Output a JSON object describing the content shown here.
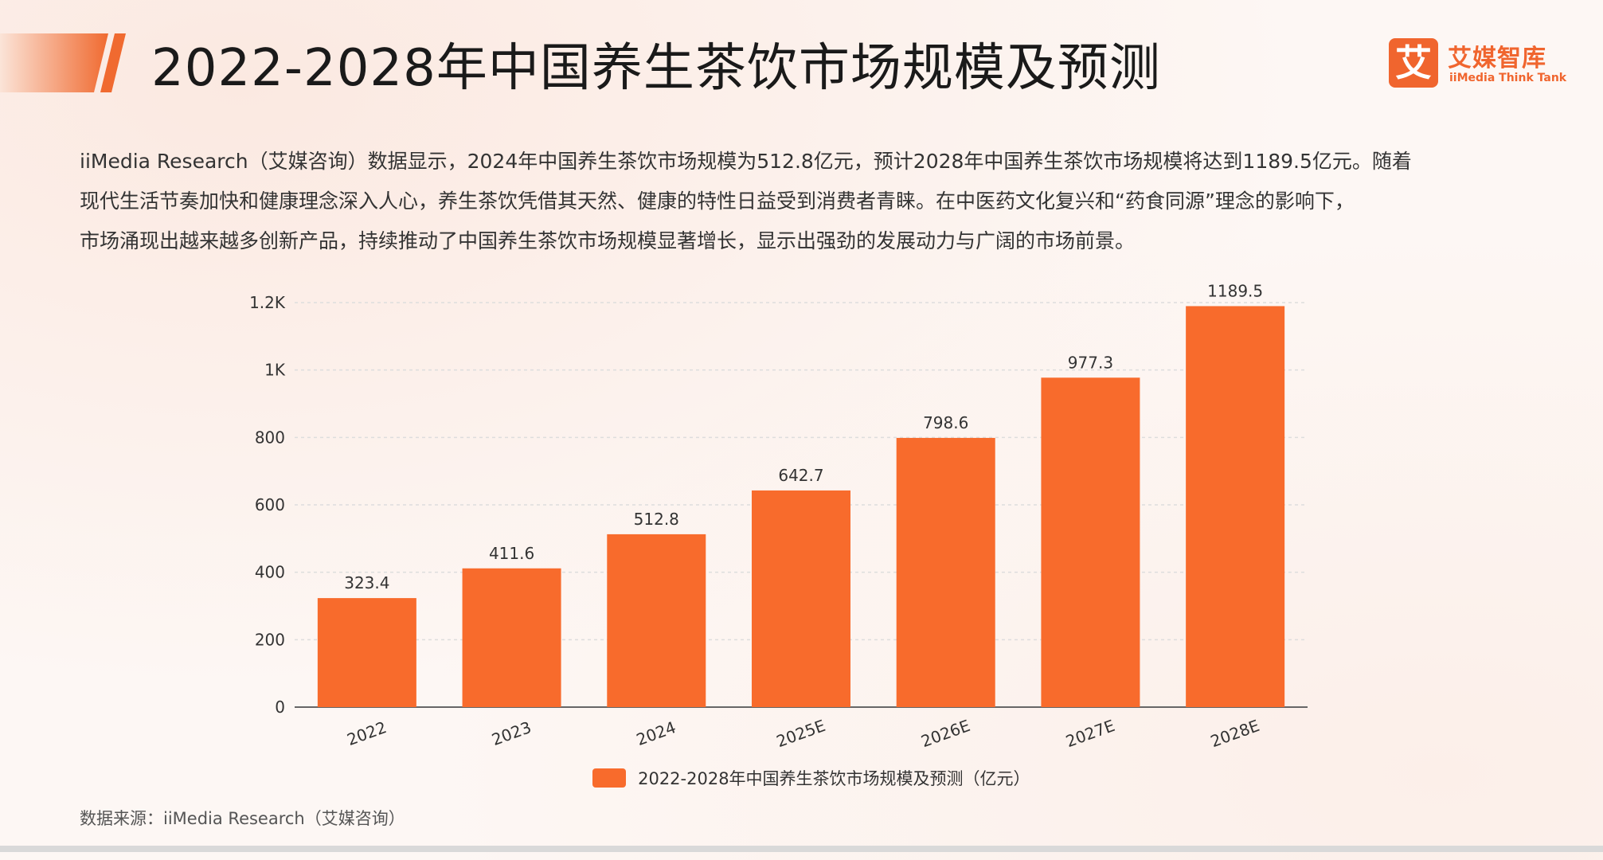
{
  "header": {
    "title": "2022-2028年中国养生茶饮市场规模及预测"
  },
  "brand": {
    "icon_char": "艾",
    "name": "艾媒智库",
    "subtitle": "iiMedia Think Tank",
    "color": "#f0652e"
  },
  "description": {
    "lines": [
      "iiMedia Research（艾媒咨询）数据显示，2024年中国养生茶饮市场规模为512.8亿元，预计2028年中国养生茶饮市场规模将达到1189.5亿元。随着",
      "现代生活节奏加快和健康理念深入人心，养生茶饮凭借其天然、健康的特性日益受到消费者青睐。在中医药文化复兴和“药食同源”理念的影响下，",
      "市场涌现出越来越多创新产品，持续推动了中国养生茶饮市场规模显著增长，显示出强劲的发展动力与广阔的市场前景。"
    ]
  },
  "chart_data": {
    "type": "bar",
    "categories": [
      "2022",
      "2023",
      "2024",
      "2025E",
      "2026E",
      "2027E",
      "2028E"
    ],
    "values": [
      323.4,
      411.6,
      512.8,
      642.7,
      798.6,
      977.3,
      1189.5
    ],
    "value_labels": [
      "323.4",
      "411.6",
      "512.8",
      "642.7",
      "798.6",
      "977.3",
      "1189.5"
    ],
    "series_name": "2022-2028年中国养生茶饮市场规模及预测（亿元）",
    "ylim": [
      0,
      1200
    ],
    "yticks": [
      0,
      200,
      400,
      600,
      800,
      1000,
      1200
    ],
    "ytick_labels": [
      "0",
      "200",
      "400",
      "600",
      "800",
      "1K",
      "1.2K"
    ],
    "grid": true,
    "legend_position": "bottom-center",
    "bar_color": "#f86b2c"
  },
  "footer": {
    "source": "数据来源：iiMedia Research（艾媒咨询）"
  }
}
